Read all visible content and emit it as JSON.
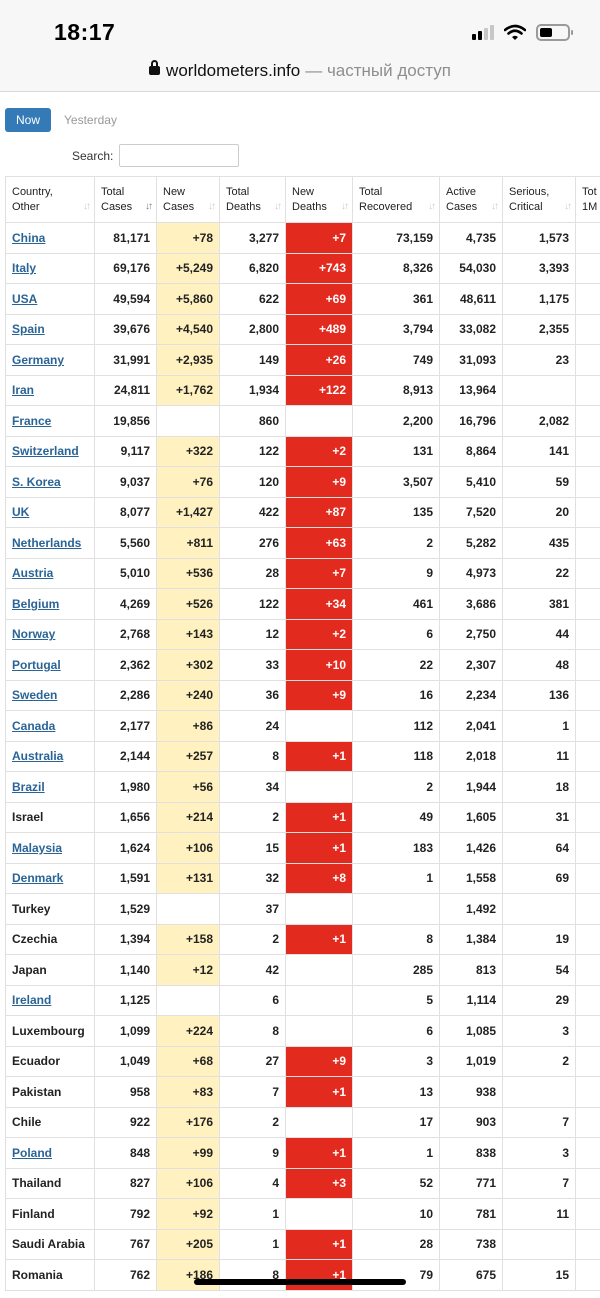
{
  "status": {
    "time": "18:17"
  },
  "browser": {
    "domain": "worldometers.info",
    "private_label": "— частный доступ"
  },
  "tabs": {
    "now": "Now",
    "yesterday": "Yesterday"
  },
  "search": {
    "label": "Search:",
    "value": ""
  },
  "table": {
    "columns": [
      {
        "line1": "Country,",
        "line2": "Other"
      },
      {
        "line1": "Total",
        "line2": "Cases"
      },
      {
        "line1": "New",
        "line2": "Cases"
      },
      {
        "line1": "Total",
        "line2": "Deaths"
      },
      {
        "line1": "New",
        "line2": "Deaths"
      },
      {
        "line1": "Total",
        "line2": "Recovered"
      },
      {
        "line1": "Active",
        "line2": "Cases"
      },
      {
        "line1": "Serious,",
        "line2": "Critical"
      },
      {
        "line1": "Tot",
        "line2": "1M"
      }
    ],
    "rows": [
      {
        "country": "China",
        "link": true,
        "total_cases": "81,171",
        "new_cases": "+78",
        "total_deaths": "3,277",
        "new_deaths": "+7",
        "total_recovered": "73,159",
        "active_cases": "4,735",
        "serious": "1,573"
      },
      {
        "country": "Italy",
        "link": true,
        "total_cases": "69,176",
        "new_cases": "+5,249",
        "total_deaths": "6,820",
        "new_deaths": "+743",
        "total_recovered": "8,326",
        "active_cases": "54,030",
        "serious": "3,393"
      },
      {
        "country": "USA",
        "link": true,
        "total_cases": "49,594",
        "new_cases": "+5,860",
        "total_deaths": "622",
        "new_deaths": "+69",
        "total_recovered": "361",
        "active_cases": "48,611",
        "serious": "1,175"
      },
      {
        "country": "Spain",
        "link": true,
        "total_cases": "39,676",
        "new_cases": "+4,540",
        "total_deaths": "2,800",
        "new_deaths": "+489",
        "total_recovered": "3,794",
        "active_cases": "33,082",
        "serious": "2,355"
      },
      {
        "country": "Germany",
        "link": true,
        "total_cases": "31,991",
        "new_cases": "+2,935",
        "total_deaths": "149",
        "new_deaths": "+26",
        "total_recovered": "749",
        "active_cases": "31,093",
        "serious": "23"
      },
      {
        "country": "Iran",
        "link": true,
        "total_cases": "24,811",
        "new_cases": "+1,762",
        "total_deaths": "1,934",
        "new_deaths": "+122",
        "total_recovered": "8,913",
        "active_cases": "13,964",
        "serious": ""
      },
      {
        "country": "France",
        "link": true,
        "total_cases": "19,856",
        "new_cases": "",
        "total_deaths": "860",
        "new_deaths": "",
        "total_recovered": "2,200",
        "active_cases": "16,796",
        "serious": "2,082"
      },
      {
        "country": "Switzerland",
        "link": true,
        "total_cases": "9,117",
        "new_cases": "+322",
        "total_deaths": "122",
        "new_deaths": "+2",
        "total_recovered": "131",
        "active_cases": "8,864",
        "serious": "141"
      },
      {
        "country": "S. Korea",
        "link": true,
        "total_cases": "9,037",
        "new_cases": "+76",
        "total_deaths": "120",
        "new_deaths": "+9",
        "total_recovered": "3,507",
        "active_cases": "5,410",
        "serious": "59"
      },
      {
        "country": "UK",
        "link": true,
        "total_cases": "8,077",
        "new_cases": "+1,427",
        "total_deaths": "422",
        "new_deaths": "+87",
        "total_recovered": "135",
        "active_cases": "7,520",
        "serious": "20"
      },
      {
        "country": "Netherlands",
        "link": true,
        "total_cases": "5,560",
        "new_cases": "+811",
        "total_deaths": "276",
        "new_deaths": "+63",
        "total_recovered": "2",
        "active_cases": "5,282",
        "serious": "435"
      },
      {
        "country": "Austria",
        "link": true,
        "total_cases": "5,010",
        "new_cases": "+536",
        "total_deaths": "28",
        "new_deaths": "+7",
        "total_recovered": "9",
        "active_cases": "4,973",
        "serious": "22"
      },
      {
        "country": "Belgium",
        "link": true,
        "total_cases": "4,269",
        "new_cases": "+526",
        "total_deaths": "122",
        "new_deaths": "+34",
        "total_recovered": "461",
        "active_cases": "3,686",
        "serious": "381"
      },
      {
        "country": "Norway",
        "link": true,
        "total_cases": "2,768",
        "new_cases": "+143",
        "total_deaths": "12",
        "new_deaths": "+2",
        "total_recovered": "6",
        "active_cases": "2,750",
        "serious": "44"
      },
      {
        "country": "Portugal",
        "link": true,
        "total_cases": "2,362",
        "new_cases": "+302",
        "total_deaths": "33",
        "new_deaths": "+10",
        "total_recovered": "22",
        "active_cases": "2,307",
        "serious": "48"
      },
      {
        "country": "Sweden",
        "link": true,
        "total_cases": "2,286",
        "new_cases": "+240",
        "total_deaths": "36",
        "new_deaths": "+9",
        "total_recovered": "16",
        "active_cases": "2,234",
        "serious": "136"
      },
      {
        "country": "Canada",
        "link": true,
        "total_cases": "2,177",
        "new_cases": "+86",
        "total_deaths": "24",
        "new_deaths": "",
        "total_recovered": "112",
        "active_cases": "2,041",
        "serious": "1"
      },
      {
        "country": "Australia",
        "link": true,
        "total_cases": "2,144",
        "new_cases": "+257",
        "total_deaths": "8",
        "new_deaths": "+1",
        "total_recovered": "118",
        "active_cases": "2,018",
        "serious": "11"
      },
      {
        "country": "Brazil",
        "link": true,
        "total_cases": "1,980",
        "new_cases": "+56",
        "total_deaths": "34",
        "new_deaths": "",
        "total_recovered": "2",
        "active_cases": "1,944",
        "serious": "18"
      },
      {
        "country": "Israel",
        "link": false,
        "total_cases": "1,656",
        "new_cases": "+214",
        "total_deaths": "2",
        "new_deaths": "+1",
        "total_recovered": "49",
        "active_cases": "1,605",
        "serious": "31"
      },
      {
        "country": "Malaysia",
        "link": true,
        "total_cases": "1,624",
        "new_cases": "+106",
        "total_deaths": "15",
        "new_deaths": "+1",
        "total_recovered": "183",
        "active_cases": "1,426",
        "serious": "64"
      },
      {
        "country": "Denmark",
        "link": true,
        "total_cases": "1,591",
        "new_cases": "+131",
        "total_deaths": "32",
        "new_deaths": "+8",
        "total_recovered": "1",
        "active_cases": "1,558",
        "serious": "69"
      },
      {
        "country": "Turkey",
        "link": false,
        "total_cases": "1,529",
        "new_cases": "",
        "total_deaths": "37",
        "new_deaths": "",
        "total_recovered": "",
        "active_cases": "1,492",
        "serious": ""
      },
      {
        "country": "Czechia",
        "link": false,
        "total_cases": "1,394",
        "new_cases": "+158",
        "total_deaths": "2",
        "new_deaths": "+1",
        "total_recovered": "8",
        "active_cases": "1,384",
        "serious": "19"
      },
      {
        "country": "Japan",
        "link": false,
        "total_cases": "1,140",
        "new_cases": "+12",
        "total_deaths": "42",
        "new_deaths": "",
        "total_recovered": "285",
        "active_cases": "813",
        "serious": "54"
      },
      {
        "country": "Ireland",
        "link": true,
        "total_cases": "1,125",
        "new_cases": "",
        "total_deaths": "6",
        "new_deaths": "",
        "total_recovered": "5",
        "active_cases": "1,114",
        "serious": "29"
      },
      {
        "country": "Luxembourg",
        "link": false,
        "total_cases": "1,099",
        "new_cases": "+224",
        "total_deaths": "8",
        "new_deaths": "",
        "total_recovered": "6",
        "active_cases": "1,085",
        "serious": "3"
      },
      {
        "country": "Ecuador",
        "link": false,
        "total_cases": "1,049",
        "new_cases": "+68",
        "total_deaths": "27",
        "new_deaths": "+9",
        "total_recovered": "3",
        "active_cases": "1,019",
        "serious": "2"
      },
      {
        "country": "Pakistan",
        "link": false,
        "total_cases": "958",
        "new_cases": "+83",
        "total_deaths": "7",
        "new_deaths": "+1",
        "total_recovered": "13",
        "active_cases": "938",
        "serious": ""
      },
      {
        "country": "Chile",
        "link": false,
        "total_cases": "922",
        "new_cases": "+176",
        "total_deaths": "2",
        "new_deaths": "",
        "total_recovered": "17",
        "active_cases": "903",
        "serious": "7"
      },
      {
        "country": "Poland",
        "link": true,
        "total_cases": "848",
        "new_cases": "+99",
        "total_deaths": "9",
        "new_deaths": "+1",
        "total_recovered": "1",
        "active_cases": "838",
        "serious": "3"
      },
      {
        "country": "Thailand",
        "link": false,
        "total_cases": "827",
        "new_cases": "+106",
        "total_deaths": "4",
        "new_deaths": "+3",
        "total_recovered": "52",
        "active_cases": "771",
        "serious": "7"
      },
      {
        "country": "Finland",
        "link": false,
        "total_cases": "792",
        "new_cases": "+92",
        "total_deaths": "1",
        "new_deaths": "",
        "total_recovered": "10",
        "active_cases": "781",
        "serious": "11"
      },
      {
        "country": "Saudi Arabia",
        "link": false,
        "total_cases": "767",
        "new_cases": "+205",
        "total_deaths": "1",
        "new_deaths": "+1",
        "total_recovered": "28",
        "active_cases": "738",
        "serious": ""
      },
      {
        "country": "Romania",
        "link": false,
        "total_cases": "762",
        "new_cases": "+186",
        "total_deaths": "8",
        "new_deaths": "+1",
        "total_recovered": "79",
        "active_cases": "675",
        "serious": "15"
      }
    ]
  },
  "colors": {
    "new_cases_bg": "#fff1c0",
    "new_deaths_bg": "#e32a1e",
    "link": "#2a6496",
    "button": "#337ab7"
  }
}
